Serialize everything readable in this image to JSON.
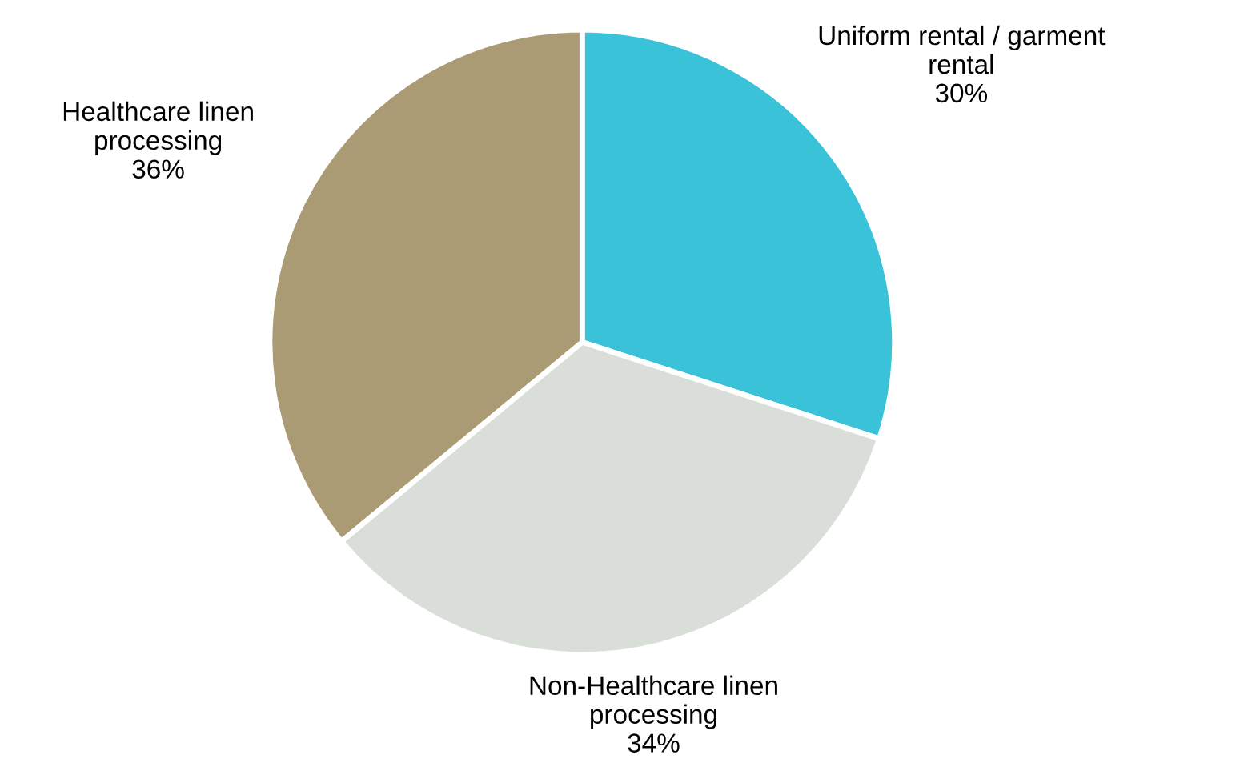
{
  "chart_data": {
    "type": "pie",
    "categories": [
      "Uniform rental / garment\nrental",
      "Non-Healthcare linen\nprocessing",
      "Healthcare linen\nprocessing"
    ],
    "values": [
      30,
      34,
      36
    ],
    "value_labels": [
      "30%",
      "34%",
      "36%"
    ],
    "colors": [
      "#3ac2d8",
      "#d9dfd8",
      "#ab9b74"
    ],
    "legend": false
  }
}
